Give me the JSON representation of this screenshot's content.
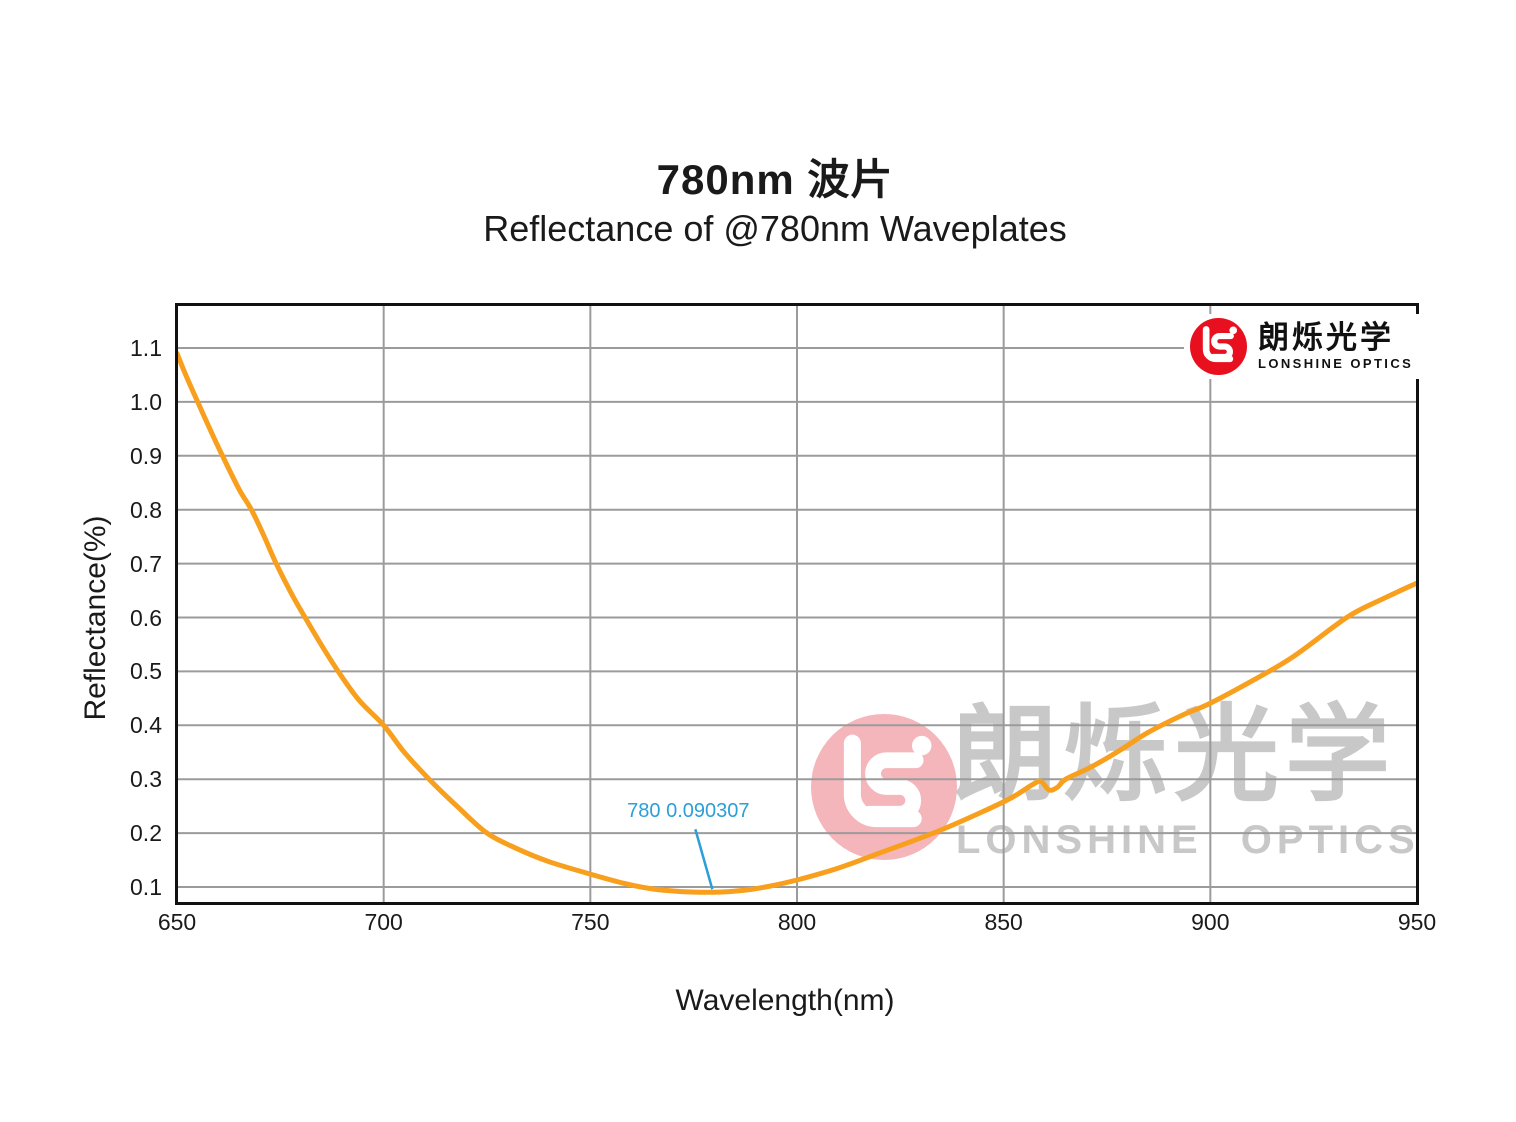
{
  "header": {
    "title": "780nm 波片",
    "subtitle": "Reflectance of @780nm Waveplates"
  },
  "logo": {
    "cn": "朗烁光学",
    "en": "LONSHINE OPTICS",
    "monogram": "LS",
    "red": "#e8101e"
  },
  "watermark": {
    "cn": "朗烁光学",
    "en": "LONSHINE OPTICS",
    "text_color": "#c8c8c8",
    "circle_color": "#f5b6bb"
  },
  "chart_data": {
    "type": "line",
    "title": "780nm 波片",
    "subtitle": "Reflectance of @780nm Waveplates",
    "xlabel": "Wavelength(nm)",
    "ylabel": "Reflectance(%)",
    "xlim": [
      650,
      950
    ],
    "ylim": [
      0.07,
      1.18
    ],
    "xticks": [
      650,
      700,
      750,
      800,
      850,
      900,
      950
    ],
    "xtick_labels": [
      "650",
      "700",
      "750",
      "800",
      "850",
      "900",
      "950"
    ],
    "yticks": [
      0.1,
      0.2,
      0.3,
      0.4,
      0.5,
      0.6,
      0.7,
      0.8,
      0.9,
      1.0,
      1.1
    ],
    "ytick_labels": [
      "0.1",
      "0.2",
      "0.3",
      "0.4",
      "0.5",
      "0.6",
      "0.7",
      "0.8",
      "0.9",
      "1.0",
      "1.1"
    ],
    "grid": true,
    "grid_color": "#9b9b9b",
    "legend": "none",
    "line_color": "#f8a01e",
    "annotation": {
      "x": 780,
      "y": 0.090307,
      "label": "780 0.090307",
      "color": "#2b9fd8"
    },
    "series": [
      {
        "name": "Reflectance",
        "color": "#f8a01e",
        "points": [
          [
            650,
            1.09
          ],
          [
            652,
            1.052
          ],
          [
            655,
            1.0
          ],
          [
            658,
            0.949
          ],
          [
            661,
            0.9
          ],
          [
            665,
            0.838
          ],
          [
            668,
            0.8
          ],
          [
            671,
            0.752
          ],
          [
            674,
            0.7
          ],
          [
            678,
            0.64
          ],
          [
            681,
            0.6
          ],
          [
            685,
            0.548
          ],
          [
            689,
            0.5
          ],
          [
            694,
            0.447
          ],
          [
            700,
            0.4
          ],
          [
            705,
            0.35
          ],
          [
            711,
            0.3
          ],
          [
            718,
            0.248
          ],
          [
            725,
            0.2
          ],
          [
            732,
            0.172
          ],
          [
            740,
            0.147
          ],
          [
            750,
            0.124
          ],
          [
            758,
            0.107
          ],
          [
            765,
            0.0965
          ],
          [
            772,
            0.0915
          ],
          [
            780,
            0.0903
          ],
          [
            787,
            0.0937
          ],
          [
            793,
            0.101
          ],
          [
            800,
            0.113
          ],
          [
            810,
            0.135
          ],
          [
            820,
            0.163
          ],
          [
            833,
            0.2
          ],
          [
            845,
            0.24
          ],
          [
            852,
            0.266
          ],
          [
            857,
            0.29
          ],
          [
            859,
            0.296
          ],
          [
            861,
            0.28
          ],
          [
            863,
            0.285
          ],
          [
            865,
            0.3
          ],
          [
            871,
            0.322
          ],
          [
            878,
            0.353
          ],
          [
            885,
            0.387
          ],
          [
            893,
            0.418
          ],
          [
            900,
            0.441
          ],
          [
            910,
            0.482
          ],
          [
            920,
            0.527
          ],
          [
            933,
            0.6
          ],
          [
            941,
            0.632
          ],
          [
            950,
            0.664
          ]
        ]
      }
    ]
  }
}
